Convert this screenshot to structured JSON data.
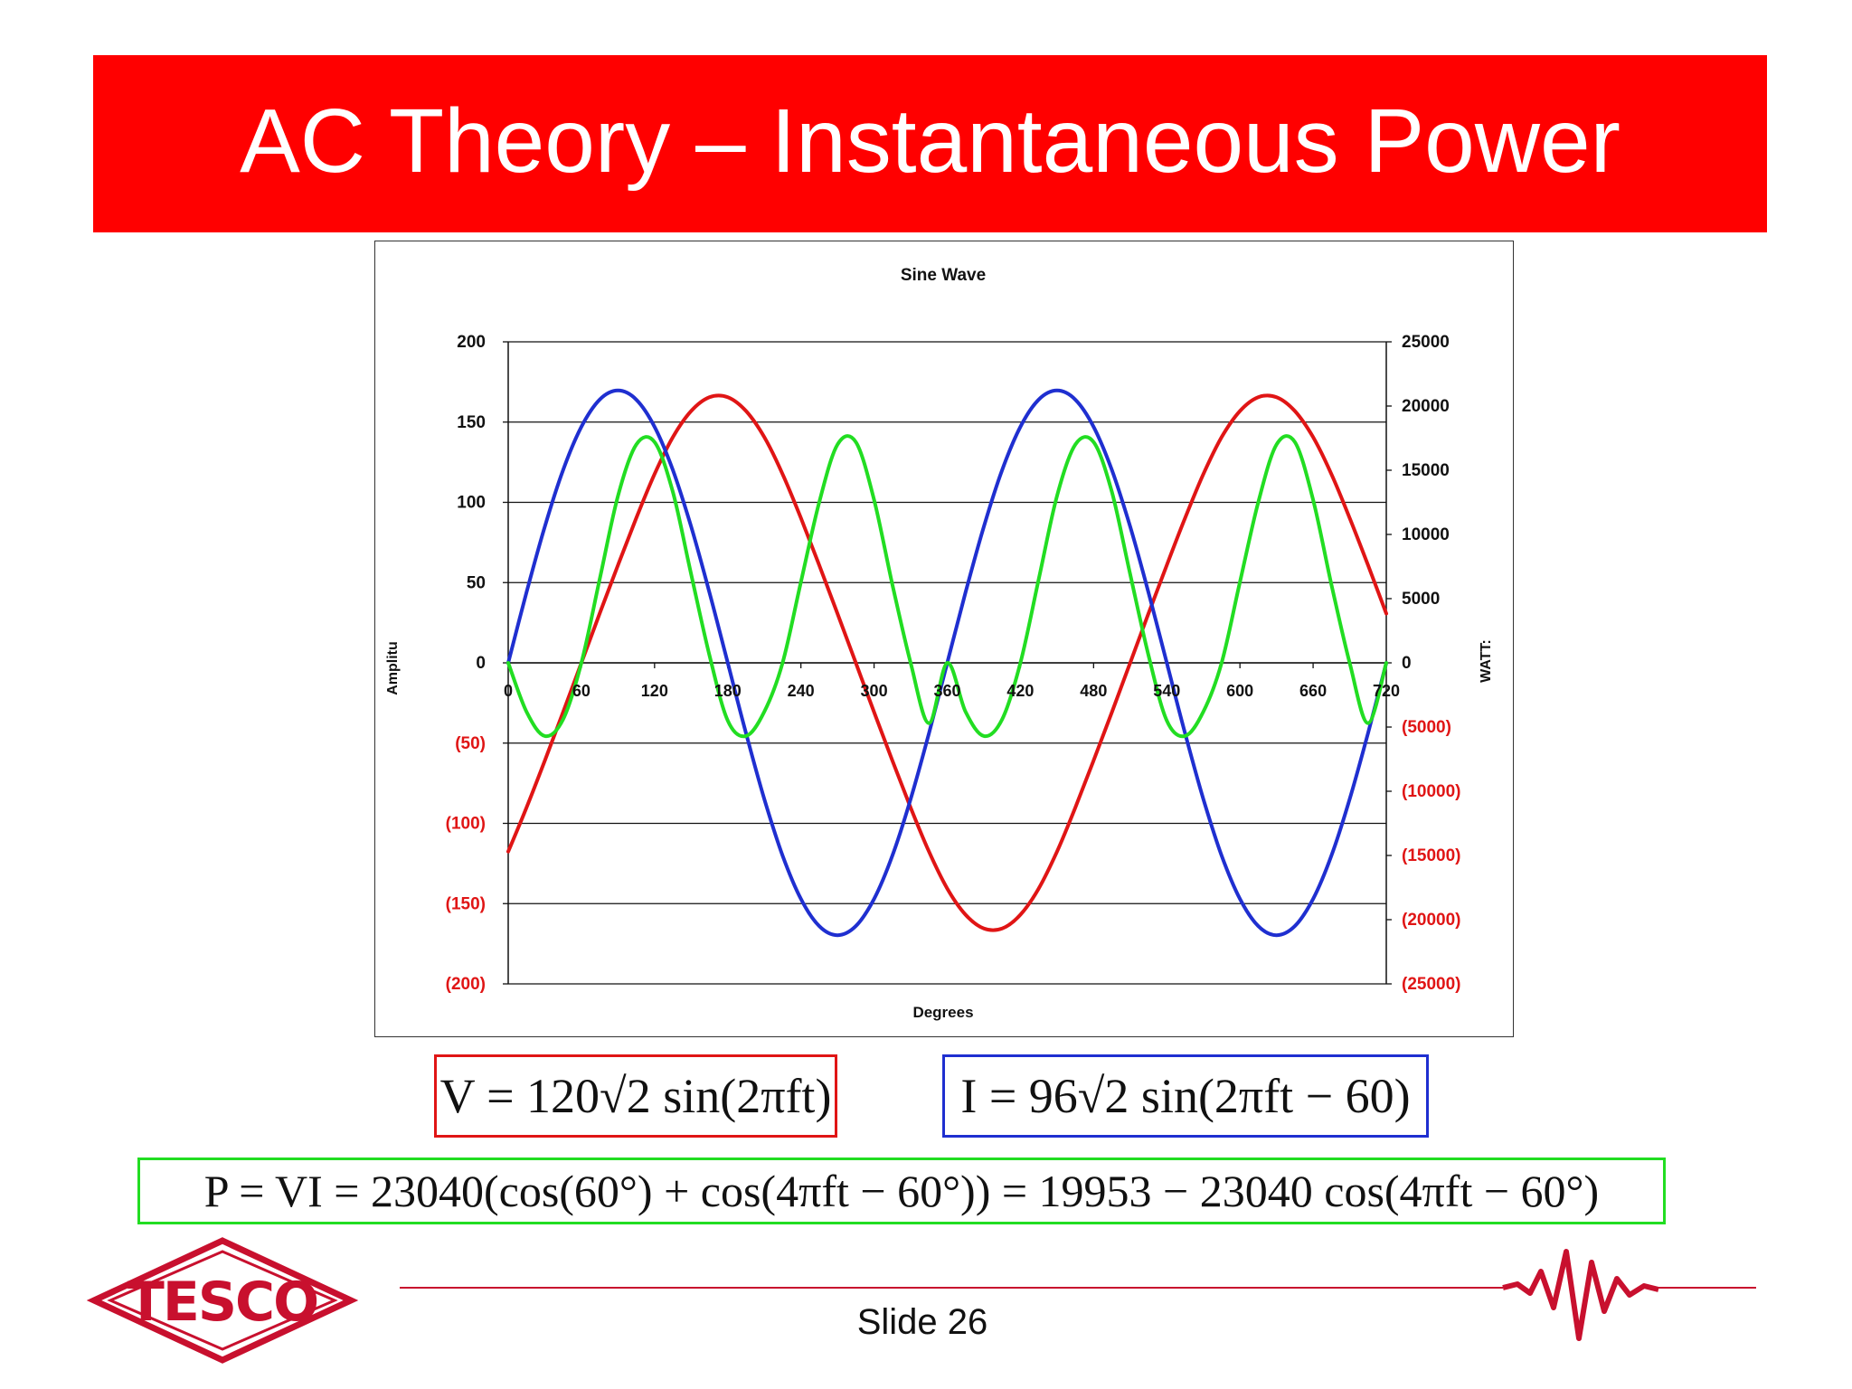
{
  "slide": {
    "title": "AC Theory – Instantaneous Power",
    "slide_number": "Slide 26",
    "logo_text": "TESCO"
  },
  "colors": {
    "title_bar": "#ff0000",
    "voltage": "#e01515",
    "current": "#1f2fd0",
    "power": "#22dd22",
    "negative_tick": "#e01515"
  },
  "formulas": {
    "voltage": "V = 120√2 sin(2πft)",
    "current": "I = 96√2 sin(2πft − 60)",
    "power": "P = VI = 23040(cos(60°) + cos(4πft − 60°)) = 19953 − 23040 cos(4πft − 60°)"
  },
  "chart_data": {
    "type": "line",
    "title": "Sine Wave",
    "xlabel": "Degrees",
    "ylabel": "Amplitu",
    "y2label": "WATT:",
    "xlim": [
      0,
      720
    ],
    "ylim": [
      -200,
      200
    ],
    "y2lim": [
      -25000,
      25000
    ],
    "x_ticks": [
      "0",
      "60",
      "120",
      "180",
      "240",
      "300",
      "360",
      "420",
      "480",
      "540",
      "600",
      "660",
      "720"
    ],
    "y_ticks": [
      "200",
      "150",
      "100",
      "50",
      "0",
      "(50)",
      "(100)",
      "(150)",
      "(200)"
    ],
    "y2_ticks": [
      "25000",
      "20000",
      "15000",
      "10000",
      "5000",
      "0",
      "(5000)",
      "(10000)",
      "(15000)",
      "(20000)",
      "(25000)"
    ],
    "grid": true,
    "x": [
      0,
      15,
      30,
      45,
      60,
      75,
      90,
      105,
      120,
      135,
      150,
      165,
      180,
      195,
      210,
      225,
      240,
      255,
      270,
      285,
      300,
      315,
      330,
      345,
      360,
      375,
      390,
      405,
      420,
      435,
      450,
      465,
      480,
      495,
      510,
      525,
      540,
      555,
      570,
      585,
      600,
      615,
      630,
      645,
      660,
      675,
      690,
      705,
      720
    ],
    "series": [
      {
        "color": "#e01515",
        "axis": "left",
        "values": [
          -117.6,
          -90.2,
          -60.9,
          -30.7,
          0,
          30.7,
          60.9,
          90.2,
          117.6,
          140.6,
          156.9,
          165.5,
          165.5,
          156.9,
          140.6,
          117.6,
          90.2,
          60.9,
          30.7,
          0,
          -30.7,
          -60.9,
          -90.2,
          -117.6,
          -140.6,
          -156.9,
          -165.5,
          -165.5,
          -156.9,
          -140.6,
          -117.6,
          -90.2,
          -60.9,
          -30.7,
          0,
          30.7,
          60.9,
          90.2,
          117.6,
          140.6,
          156.9,
          165.5,
          165.5,
          156.9,
          140.6,
          117.6,
          90.2,
          60.9,
          30.7
        ]
      },
      {
        "color": "#1f2fd0",
        "axis": "left",
        "values": [
          0,
          43.9,
          84.9,
          120.1,
          147.1,
          164.0,
          169.7,
          164.0,
          147.1,
          120.1,
          84.9,
          43.9,
          0,
          -43.9,
          -84.9,
          -120.1,
          -147.1,
          -164.0,
          -169.7,
          -164.0,
          -147.1,
          -120.1,
          -84.9,
          -43.9,
          0,
          43.9,
          84.9,
          120.1,
          147.1,
          164.0,
          169.7,
          164.0,
          147.1,
          120.1,
          84.9,
          43.9,
          0,
          -43.9,
          -84.9,
          -120.1,
          -147.1,
          -164.0,
          -169.7,
          -164.0,
          -147.1,
          -120.1,
          -84.9,
          -43.9,
          0
        ]
      },
      {
        "color": "#22dd22",
        "axis": "right",
        "values": [
          0,
          -3800,
          -5700,
          -4400,
          0,
          6500,
          13000,
          17000,
          17200,
          13300,
          6900,
          600,
          -4500,
          -5700,
          -3800,
          0,
          6300,
          12500,
          17000,
          17200,
          12700,
          6100,
          0,
          -4700,
          0,
          -3800,
          -5700,
          -4400,
          0,
          6500,
          13000,
          17000,
          17200,
          13300,
          6900,
          600,
          -4500,
          -5700,
          -3800,
          0,
          6300,
          12500,
          17000,
          17200,
          12700,
          6100,
          0,
          -4700,
          0
        ]
      }
    ]
  }
}
